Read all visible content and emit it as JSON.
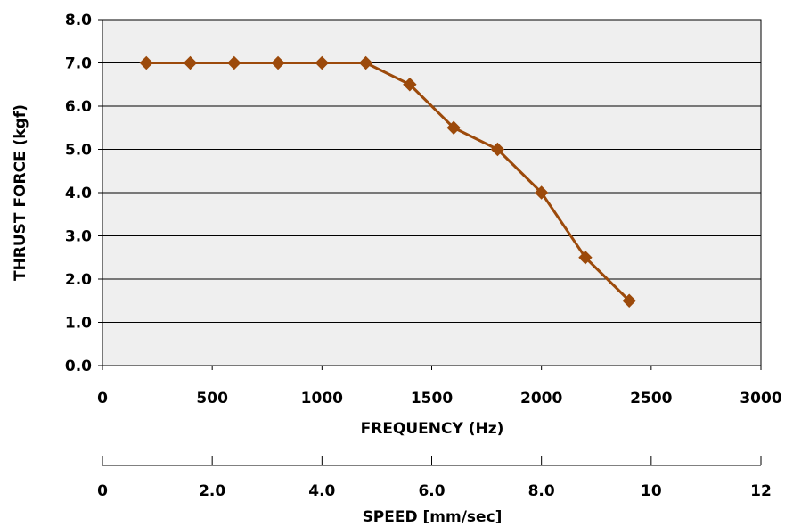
{
  "chart_data": {
    "type": "line",
    "title": "",
    "xlabel": "FREQUENCY (Hz)",
    "ylabel": "THRUST FORCE (kgf)",
    "secondary_xlabel": "SPEED [mm/sec]",
    "xlim": [
      0,
      3000
    ],
    "ylim": [
      0,
      8
    ],
    "secondary_xlim": [
      0,
      12
    ],
    "x_ticks": [
      "0",
      "500",
      "1000",
      "1500",
      "2000",
      "2500",
      "3000"
    ],
    "y_ticks": [
      "0.0",
      "1.0",
      "2.0",
      "3.0",
      "4.0",
      "5.0",
      "6.0",
      "7.0",
      "8.0"
    ],
    "secondary_x_ticks": [
      "0",
      "2.0",
      "4.0",
      "6.0",
      "8.0",
      "10",
      "12"
    ],
    "grid": "horizontal",
    "plot_background": "#efefef",
    "series": [
      {
        "color": "#9c4a0b",
        "marker": "diamond",
        "x": [
          200,
          400,
          600,
          800,
          1000,
          1200,
          1400,
          1600,
          1800,
          2000,
          2200,
          2400
        ],
        "y": [
          7.0,
          7.0,
          7.0,
          7.0,
          7.0,
          7.0,
          6.5,
          5.5,
          5.0,
          4.0,
          2.5,
          1.5
        ]
      }
    ]
  }
}
